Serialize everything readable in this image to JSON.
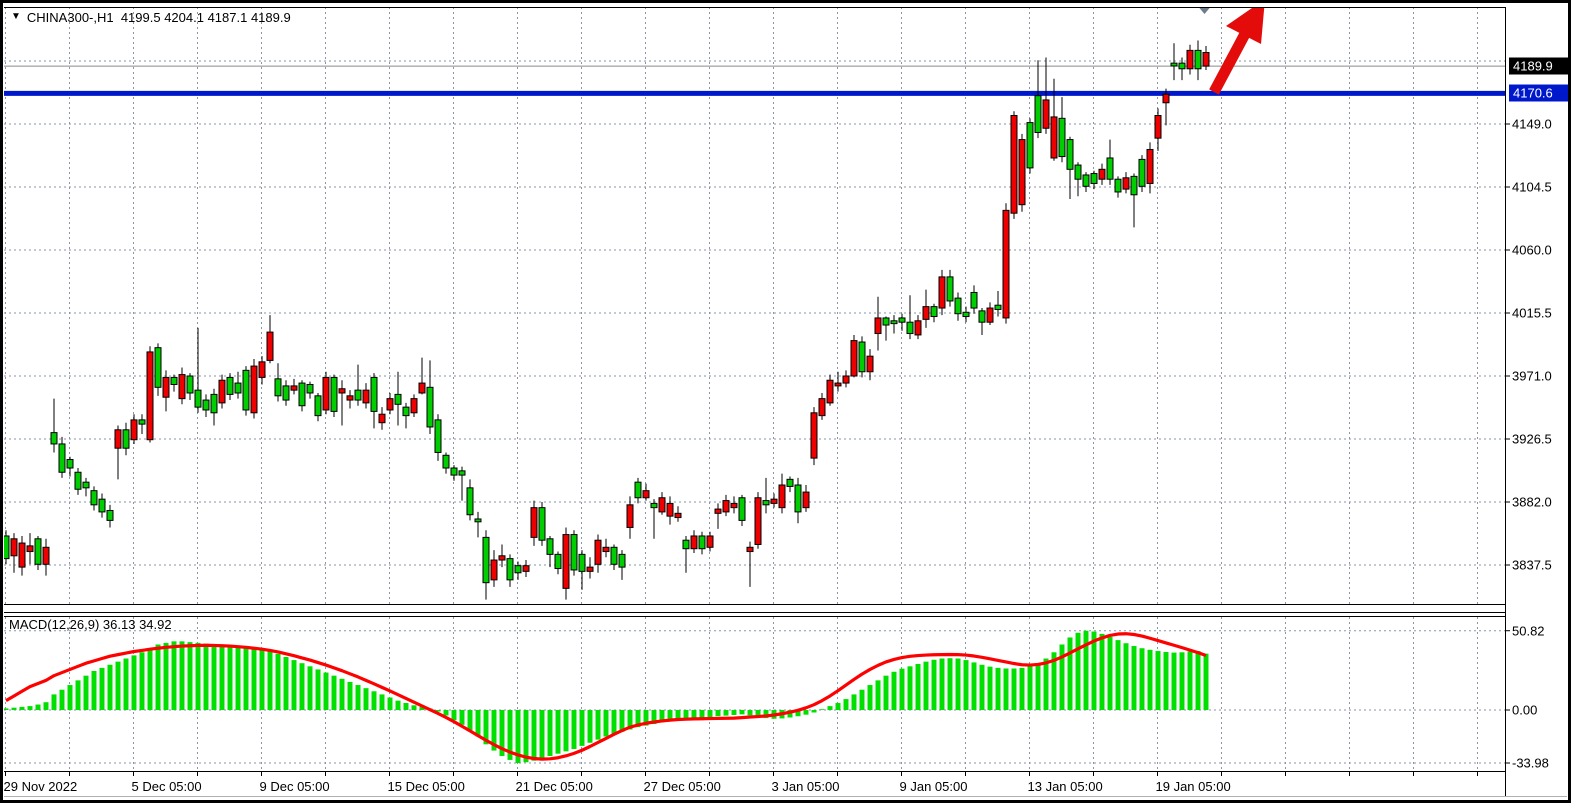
{
  "window": {
    "title_text": "CHINA300-,H1  4199.5 4204.1 4187.1 4189.9",
    "dropdown_icon": "▼"
  },
  "colors": {
    "bull": "#00CE00",
    "bear": "#EE0000",
    "wick": "#000000",
    "grid": "#8896A8",
    "hist": "#00E000",
    "signal_line": "#FF0000",
    "hline_blue": "#0018CC",
    "badge_current_bg": "#000000",
    "badge_line_bg": "#0018CC",
    "bid_line": "#8a8a8a",
    "arrow_red": "#E40B0B",
    "marker_gray": "#6E7B8A",
    "frame": "#000000"
  },
  "price_axis": {
    "tick_labels": [
      "4149.0",
      "4104.5",
      "4060.0",
      "4015.5",
      "3971.0",
      "3926.5",
      "3882.0",
      "3837.5"
    ],
    "tick_values": [
      4149.0,
      4104.5,
      4060.0,
      4015.5,
      3971.0,
      3926.5,
      3882.0,
      3837.5
    ],
    "current_badge_label": "4189.9",
    "line_badge_label": "4170.6"
  },
  "time_axis": {
    "labels": [
      "29 Nov 2022",
      "5 Dec 05:00",
      "9 Dec 05:00",
      "15 Dec 05:00",
      "21 Dec 05:00",
      "27 Dec 05:00",
      "3 Jan 05:00",
      "9 Jan 05:00",
      "13 Jan 05:00",
      "19 Jan 05:00"
    ]
  },
  "macd_panel": {
    "label": "MACD(12,26,9) 36.13 34.92",
    "tick_labels": [
      "50.82",
      "0.00",
      "-33.98"
    ],
    "tick_values": [
      50.82,
      0.0,
      -33.98
    ]
  },
  "chart_data": {
    "type": "candlestick",
    "symbol": "CHINA300-",
    "period": "H1",
    "last_ohlc": {
      "open": 4199.5,
      "high": 4204.1,
      "low": 4187.1,
      "close": 4189.9
    },
    "current_price": 4189.9,
    "horizontal_line_price": 4170.6,
    "ylim": [
      3810,
      4215
    ],
    "y_ticks": [
      4149.0,
      4104.5,
      4060.0,
      4015.5,
      3971.0,
      3926.5,
      3882.0,
      3837.5
    ],
    "x_labels": [
      "29 Nov 2022",
      "5 Dec 05:00",
      "9 Dec 05:00",
      "15 Dec 05:00",
      "21 Dec 05:00",
      "27 Dec 05:00",
      "3 Jan 05:00",
      "9 Jan 05:00",
      "13 Jan 05:00",
      "19 Jan 05:00"
    ],
    "candles": [
      [
        3842,
        3862,
        3838,
        3858
      ],
      [
        3856,
        3860,
        3832,
        3844
      ],
      [
        3853,
        3858,
        3830,
        3836
      ],
      [
        3851,
        3860,
        3838,
        3847
      ],
      [
        3838,
        3858,
        3834,
        3856
      ],
      [
        3850,
        3856,
        3830,
        3838
      ],
      [
        3923,
        3955,
        3917,
        3931
      ],
      [
        3903,
        3928,
        3899,
        3923
      ],
      [
        3906,
        3914,
        3900,
        3912
      ],
      [
        3891,
        3906,
        3887,
        3903
      ],
      [
        3892,
        3899,
        3886,
        3896
      ],
      [
        3880,
        3893,
        3876,
        3890
      ],
      [
        3875,
        3888,
        3871,
        3884
      ],
      [
        3869,
        3880,
        3864,
        3876
      ],
      [
        3933,
        3936,
        3898,
        3920
      ],
      [
        3920,
        3938,
        3915,
        3933
      ],
      [
        3940,
        3944,
        3923,
        3926
      ],
      [
        3937,
        3944,
        3930,
        3940
      ],
      [
        3988,
        3992,
        3924,
        3926
      ],
      [
        3963,
        3994,
        3957,
        3991
      ],
      [
        3970,
        3975,
        3946,
        3956
      ],
      [
        3965,
        3972,
        3960,
        3970
      ],
      [
        3972,
        3977,
        3951,
        3955
      ],
      [
        3959,
        3973,
        3954,
        3971
      ],
      [
        3949,
        4005,
        3945,
        3961
      ],
      [
        3947,
        3958,
        3942,
        3954
      ],
      [
        3945,
        3962,
        3936,
        3958
      ],
      [
        3968,
        3972,
        3948,
        3952
      ],
      [
        3958,
        3973,
        3954,
        3970
      ],
      [
        3959,
        3974,
        3955,
        3966
      ],
      [
        3947,
        3978,
        3943,
        3975
      ],
      [
        3978,
        3983,
        3941,
        3945
      ],
      [
        3981,
        3985,
        3965,
        3970
      ],
      [
        4002,
        4014,
        3980,
        3982
      ],
      [
        3957,
        3980,
        3953,
        3969
      ],
      [
        3954,
        3968,
        3950,
        3964
      ],
      [
        3964,
        3969,
        3958,
        3961
      ],
      [
        3950,
        3968,
        3946,
        3966
      ],
      [
        3959,
        3967,
        3955,
        3965
      ],
      [
        3943,
        3959,
        3939,
        3957
      ],
      [
        3970,
        3974,
        3944,
        3947
      ],
      [
        3946,
        3972,
        3942,
        3970
      ],
      [
        3962,
        3968,
        3936,
        3959
      ],
      [
        3957,
        3961,
        3948,
        3954
      ],
      [
        3954,
        3979,
        3950,
        3961
      ],
      [
        3961,
        3966,
        3948,
        3952
      ],
      [
        3946,
        3973,
        3934,
        3970
      ],
      [
        3944,
        3949,
        3933,
        3938
      ],
      [
        3955,
        3959,
        3944,
        3947
      ],
      [
        3951,
        3974,
        3936,
        3958
      ],
      [
        3943,
        3952,
        3934,
        3949
      ],
      [
        3955,
        3958,
        3942,
        3945
      ],
      [
        3966,
        3984,
        3958,
        3959
      ],
      [
        3935,
        3982,
        3930,
        3963
      ],
      [
        3917,
        3944,
        3911,
        3940
      ],
      [
        3906,
        3917,
        3902,
        3915
      ],
      [
        3901,
        3908,
        3897,
        3906
      ],
      [
        3901,
        3907,
        3883,
        3904
      ],
      [
        3873,
        3898,
        3869,
        3892
      ],
      [
        3868,
        3875,
        3857,
        3870
      ],
      [
        3825,
        3862,
        3813,
        3857
      ],
      [
        3841,
        3848,
        3822,
        3827
      ],
      [
        3844,
        3852,
        3836,
        3841
      ],
      [
        3827,
        3845,
        3822,
        3842
      ],
      [
        3832,
        3840,
        3827,
        3837
      ],
      [
        3837,
        3841,
        3829,
        3833
      ],
      [
        3878,
        3883,
        3851,
        3857
      ],
      [
        3855,
        3882,
        3851,
        3878
      ],
      [
        3845,
        3858,
        3836,
        3856
      ],
      [
        3835,
        3847,
        3831,
        3845
      ],
      [
        3859,
        3864,
        3813,
        3821
      ],
      [
        3834,
        3862,
        3830,
        3859
      ],
      [
        3833,
        3848,
        3820,
        3845
      ],
      [
        3836,
        3843,
        3828,
        3833
      ],
      [
        3855,
        3859,
        3832,
        3838
      ],
      [
        3850,
        3856,
        3843,
        3847
      ],
      [
        3838,
        3852,
        3834,
        3850
      ],
      [
        3836,
        3848,
        3827,
        3845
      ],
      [
        3880,
        3886,
        3856,
        3864
      ],
      [
        3885,
        3899,
        3881,
        3896
      ],
      [
        3890,
        3895,
        3883,
        3885
      ],
      [
        3878,
        3884,
        3856,
        3881
      ],
      [
        3885,
        3889,
        3873,
        3875
      ],
      [
        3881,
        3886,
        3866,
        3872
      ],
      [
        3874,
        3879,
        3868,
        3871
      ],
      [
        3849,
        3858,
        3832,
        3855
      ],
      [
        3858,
        3862,
        3846,
        3849
      ],
      [
        3849,
        3861,
        3845,
        3858
      ],
      [
        3858,
        3861,
        3847,
        3850
      ],
      [
        3877,
        3881,
        3863,
        3874
      ],
      [
        3883,
        3887,
        3872,
        3875
      ],
      [
        3881,
        3886,
        3874,
        3878
      ],
      [
        3869,
        3887,
        3865,
        3885
      ],
      [
        3850,
        3854,
        3822,
        3847
      ],
      [
        3885,
        3889,
        3849,
        3852
      ],
      [
        3880,
        3899,
        3874,
        3883
      ],
      [
        3884,
        3888,
        3878,
        3881
      ],
      [
        3894,
        3902,
        3874,
        3878
      ],
      [
        3893,
        3900,
        3889,
        3898
      ],
      [
        3875,
        3899,
        3867,
        3894
      ],
      [
        3889,
        3894,
        3875,
        3878
      ],
      [
        3945,
        3949,
        3908,
        3913
      ],
      [
        3955,
        3959,
        3940,
        3943
      ],
      [
        3968,
        3972,
        3950,
        3952
      ],
      [
        3966,
        3974,
        3960,
        3964
      ],
      [
        3971,
        3975,
        3963,
        3966
      ],
      [
        3996,
        4000,
        3970,
        3971
      ],
      [
        3974,
        3999,
        3970,
        3995
      ],
      [
        3985,
        3990,
        3968,
        3974
      ],
      [
        4012,
        4027,
        3989,
        4001
      ],
      [
        4007,
        4013,
        3996,
        4012
      ],
      [
        4008,
        4014,
        4001,
        4010
      ],
      [
        4009,
        4015,
        4003,
        4012
      ],
      [
        4001,
        4028,
        3997,
        4009
      ],
      [
        4010,
        4014,
        3997,
        4000
      ],
      [
        4020,
        4032,
        4005,
        4011
      ],
      [
        4013,
        4022,
        4009,
        4020
      ],
      [
        4041,
        4046,
        4014,
        4019
      ],
      [
        4024,
        4046,
        4020,
        4041
      ],
      [
        4015,
        4030,
        4010,
        4026
      ],
      [
        4013,
        4020,
        4009,
        4016
      ],
      [
        4019,
        4035,
        4015,
        4030
      ],
      [
        4009,
        4019,
        4000,
        4017
      ],
      [
        4019,
        4023,
        4007,
        4009
      ],
      [
        4018,
        4031,
        4013,
        4021
      ],
      [
        4088,
        4093,
        4008,
        4012
      ],
      [
        4155,
        4158,
        4082,
        4086
      ],
      [
        4138,
        4142,
        4087,
        4092
      ],
      [
        4118,
        4153,
        4114,
        4150
      ],
      [
        4143,
        4194,
        4139,
        4169
      ],
      [
        4166,
        4196,
        4142,
        4146
      ],
      [
        4154,
        4181,
        4123,
        4125
      ],
      [
        4126,
        4168,
        4122,
        4153
      ],
      [
        4117,
        4140,
        4096,
        4138
      ],
      [
        4110,
        4122,
        4098,
        4120
      ],
      [
        4105,
        4115,
        4101,
        4113
      ],
      [
        4107,
        4116,
        4103,
        4114
      ],
      [
        4117,
        4121,
        4106,
        4110
      ],
      [
        4110,
        4138,
        4106,
        4125
      ],
      [
        4101,
        4112,
        4097,
        4110
      ],
      [
        4111,
        4115,
        4100,
        4103
      ],
      [
        4099,
        4114,
        4076,
        4112
      ],
      [
        4105,
        4127,
        4101,
        4124
      ],
      [
        4131,
        4136,
        4100,
        4107
      ],
      [
        4155,
        4160,
        4130,
        4139
      ],
      [
        4170,
        4174,
        4148,
        4164
      ],
      [
        4190,
        4206,
        4180,
        4192
      ],
      [
        4188,
        4196,
        4180,
        4192
      ],
      [
        4201,
        4205,
        4184,
        4188
      ],
      [
        4188,
        4208,
        4180,
        4201
      ],
      [
        4199.5,
        4204.1,
        4187.1,
        4189.9
      ]
    ],
    "macd": {
      "params": "12,26,9",
      "macd_value": 36.13,
      "signal_value": 34.92,
      "scale_ticks": [
        50.82,
        0.0,
        -33.98
      ],
      "histogram": [
        1,
        1.5,
        2,
        2.5,
        3.5,
        5,
        10,
        13,
        16,
        19,
        22,
        25,
        27,
        29,
        31,
        33,
        35,
        37,
        39,
        42,
        43,
        44,
        44,
        43.5,
        43,
        42.5,
        42,
        42,
        41.5,
        41,
        41,
        40,
        39,
        38,
        36,
        34,
        32,
        30,
        28,
        26,
        24,
        22,
        20,
        18,
        16,
        14,
        12,
        10,
        8,
        6,
        4.5,
        3,
        2,
        1,
        -1,
        -3.5,
        -6.5,
        -9.5,
        -13,
        -17,
        -22,
        -26,
        -29.5,
        -32,
        -33.98,
        -33.5,
        -32.5,
        -31,
        -29.5,
        -28,
        -26.5,
        -25,
        -23,
        -21,
        -19,
        -17,
        -15.5,
        -14,
        -12.5,
        -11,
        -10,
        -9,
        -8,
        -7.2,
        -6.5,
        -6,
        -5.5,
        -5,
        -4.5,
        -4,
        -3.6,
        -3.2,
        -2.8,
        -3.4,
        -4.4,
        -5.2,
        -5.6,
        -5.4,
        -4.8,
        -4,
        -3,
        -1.6,
        0.5,
        2.5,
        4.5,
        7,
        10,
        13,
        16,
        19,
        22,
        24.5,
        26.5,
        28,
        29.5,
        31,
        32.2,
        33,
        33.2,
        33,
        32,
        30.5,
        29,
        27.8,
        27,
        26.6,
        26.6,
        27,
        28,
        30,
        33,
        37,
        42,
        46.5,
        49.5,
        50.8,
        50.3,
        48.8,
        46.8,
        44.8,
        42.8,
        41,
        39.6,
        38.6,
        37.8,
        37.2,
        36.8,
        37,
        37.6,
        37.8,
        36.1
      ],
      "signal": [
        6,
        9,
        12,
        15,
        17,
        19,
        22,
        24,
        26,
        28,
        30,
        31.5,
        33,
        34.5,
        35.5,
        36.5,
        37.5,
        38.2,
        39,
        39.6,
        40.2,
        40.6,
        41,
        41.2,
        41.4,
        41.5,
        41.4,
        41.2,
        41,
        40.6,
        40.2,
        39.6,
        39,
        38.2,
        37.2,
        36,
        34.8,
        33.4,
        32,
        30.4,
        28.8,
        27,
        25.2,
        23.2,
        21.2,
        19,
        16.8,
        14.5,
        12.2,
        9.8,
        7.4,
        5,
        2.6,
        0.2,
        -2.2,
        -4.8,
        -7.5,
        -10.4,
        -13.4,
        -16.4,
        -19.4,
        -22.2,
        -24.8,
        -27,
        -28.8,
        -30.2,
        -31.1,
        -31.5,
        -31.3,
        -30.6,
        -29.4,
        -27.8,
        -25.8,
        -23.4,
        -20.8,
        -18.2,
        -15.6,
        -13.2,
        -11,
        -9.6,
        -8.5,
        -7.7,
        -7,
        -6.5,
        -6.1,
        -5.9,
        -5.7,
        -5.6,
        -5.5,
        -5.4,
        -5.3,
        -5.2,
        -4.9,
        -4.5,
        -4.2,
        -3.8,
        -3.2,
        -2.4,
        -1.4,
        -0.2,
        1.4,
        3.4,
        6,
        9,
        12.4,
        16,
        19.6,
        23,
        26,
        28.6,
        30.8,
        32.4,
        33.6,
        34.4,
        34.9,
        35.2,
        35.4,
        35.5,
        35.6,
        35.5,
        35.2,
        34.6,
        33.8,
        32.8,
        31.8,
        30.8,
        29.8,
        29,
        28.8,
        29.2,
        30.2,
        31.8,
        34,
        36.6,
        39.2,
        41.8,
        44.2,
        46.2,
        47.8,
        48.7,
        48.9,
        48.4,
        47.4,
        46,
        44.5,
        43,
        41.5,
        40,
        38.4,
        36.8,
        34.9
      ]
    },
    "annotations": {
      "trend_arrow": "large red up-right arrow from the 4170.6 line toward top-right",
      "marker": "gray downward triangle above last candles"
    }
  }
}
